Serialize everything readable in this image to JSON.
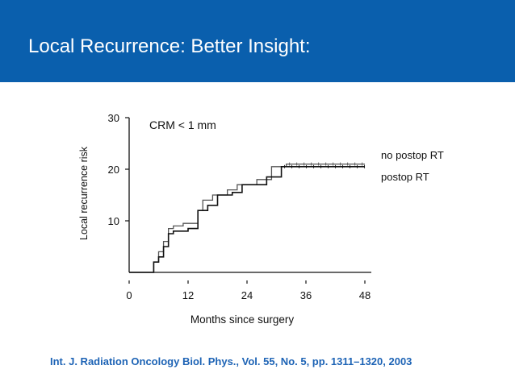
{
  "slide": {
    "title": "Local Recurrence: Better Insight:",
    "citation": "Int. J. Radiation Oncology Biol. Phys., Vol. 55, No. 5, pp. 1311–1320, 2003"
  },
  "colors": {
    "header": "#0a5fad",
    "citation": "#1d63b5",
    "title_text": "#ffffff"
  },
  "chart_data": {
    "type": "line",
    "title": "CRM < 1 mm",
    "xlabel": "Months since surgery",
    "ylabel": "Local recurrence risk",
    "xlim": [
      0,
      48
    ],
    "ylim": [
      0,
      30
    ],
    "xticks": [
      0,
      12,
      24,
      36,
      48
    ],
    "yticks": [
      10,
      20,
      30
    ],
    "grid": false,
    "step": true,
    "series": [
      {
        "name": "no postop RT",
        "x": [
          0,
          5,
          6,
          7,
          8,
          9,
          11,
          14,
          15,
          17,
          20,
          22,
          26,
          29,
          32,
          48
        ],
        "y": [
          0,
          2,
          4,
          6,
          8.5,
          9,
          9.5,
          12,
          14,
          15,
          16,
          17,
          18,
          20.5,
          21,
          21
        ]
      },
      {
        "name": "postop RT",
        "x": [
          0,
          5,
          6,
          7,
          8,
          9,
          12,
          14,
          16,
          18,
          21,
          23,
          28,
          31,
          48
        ],
        "y": [
          0,
          2,
          3,
          5,
          7.5,
          8,
          8.5,
          12,
          13,
          15,
          15.5,
          17,
          18.5,
          20.5,
          20.5
        ]
      }
    ]
  }
}
